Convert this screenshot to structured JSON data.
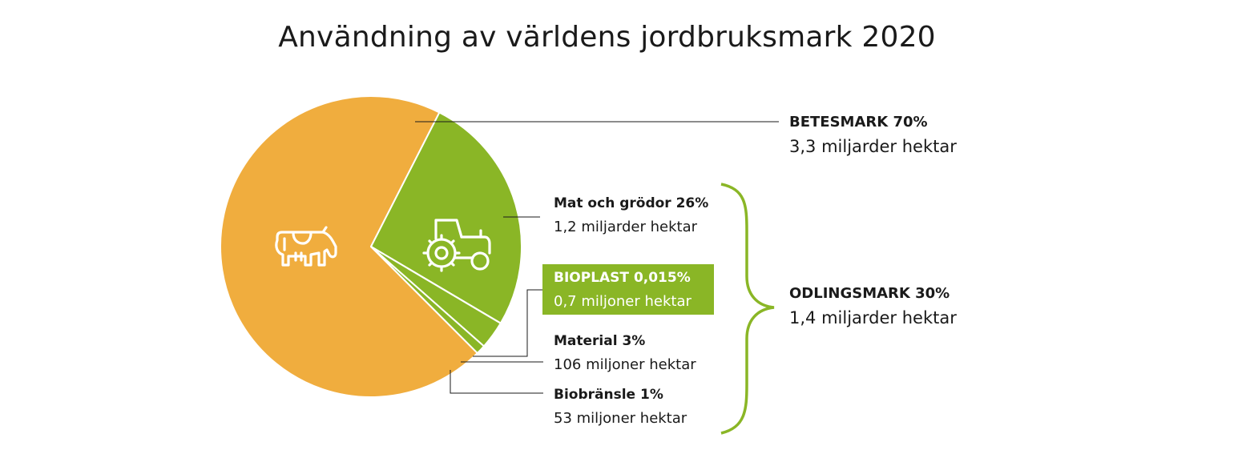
{
  "title": "Användning av världens jordbruksmark 2020",
  "chart_data": {
    "type": "pie",
    "title": "Användning av världens jordbruksmark 2020",
    "slices": [
      {
        "key": "betesmark",
        "label": "BETESMARK 70%",
        "sublabel": "3,3 miljarder hektar",
        "value": 70,
        "color": "#f0ad3e",
        "icon": "cow-icon"
      },
      {
        "key": "mat",
        "label": "Mat och grödor 26%",
        "sublabel": "1,2 miljarder hektar",
        "value": 26,
        "color": "#8ab626",
        "icon": "tractor-icon"
      },
      {
        "key": "bioplast",
        "label": "BIOPLAST 0,015%",
        "sublabel": "0,7 miljoner hektar",
        "value": 0.015,
        "color": "#8ab626"
      },
      {
        "key": "material",
        "label": "Material 3%",
        "sublabel": "106 miljoner hektar",
        "value": 3,
        "color": "#8ab626"
      },
      {
        "key": "biobransle",
        "label": "Biobränsle 1%",
        "sublabel": "53 miljoner hektar",
        "value": 1,
        "color": "#8ab626"
      }
    ],
    "group": {
      "label": "ODLINGSMARK 30%",
      "sublabel": "1,4 miljarder hektar",
      "value": 30,
      "color": "#8ab626"
    }
  }
}
